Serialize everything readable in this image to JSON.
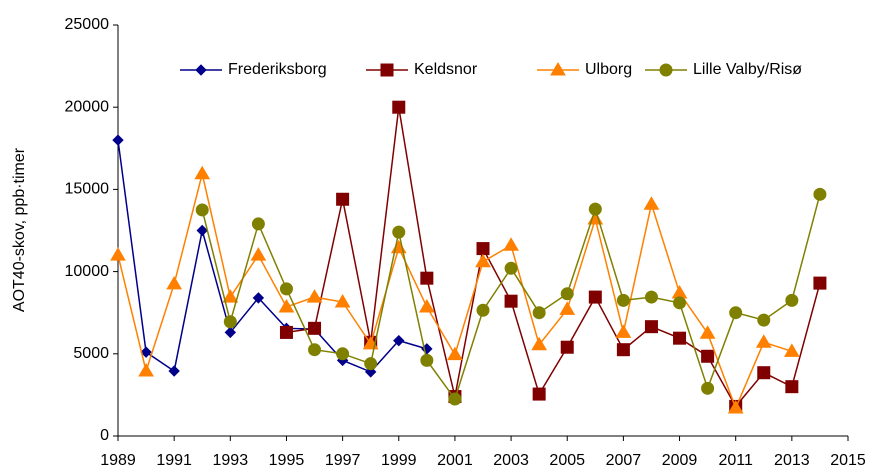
{
  "chart_data": {
    "type": "line",
    "y_label": "AOT40-skov, ppb·timer",
    "x": [
      1989,
      1990,
      1991,
      1992,
      1993,
      1994,
      1995,
      1996,
      1997,
      1998,
      1999,
      2000,
      2001,
      2002,
      2003,
      2004,
      2005,
      2006,
      2007,
      2008,
      2009,
      2010,
      2011,
      2012,
      2013,
      2014
    ],
    "series": [
      {
        "name": "Frederiksborg",
        "color": "#00008b",
        "marker": "diamond",
        "values": [
          18000,
          5100,
          3950,
          12500,
          6300,
          8400,
          6550,
          6500,
          4600,
          3900,
          5800,
          5300,
          null,
          null,
          null,
          null,
          null,
          null,
          null,
          null,
          null,
          null,
          null,
          null,
          null,
          null
        ]
      },
      {
        "name": "Keldsnor",
        "color": "#800000",
        "marker": "square",
        "values": [
          null,
          null,
          null,
          null,
          null,
          null,
          6300,
          6550,
          14400,
          5700,
          20000,
          9600,
          2400,
          11400,
          8200,
          2550,
          5400,
          8450,
          5250,
          6650,
          5950,
          4850,
          1800,
          3850,
          3000,
          9300
        ]
      },
      {
        "name": "Ulborg",
        "color": "#ff8000",
        "marker": "triangle",
        "values": [
          11000,
          3950,
          9250,
          15950,
          8450,
          11000,
          7850,
          8450,
          8150,
          5600,
          11450,
          7850,
          4950,
          10600,
          11600,
          5550,
          7700,
          13200,
          6300,
          14100,
          8700,
          6250,
          1700,
          5700,
          5150,
          null
        ]
      },
      {
        "name": "Lille Valby/Risø",
        "color": "#808000",
        "marker": "circle",
        "values": [
          null,
          null,
          null,
          13750,
          6950,
          12900,
          8950,
          5250,
          5000,
          4400,
          12400,
          4600,
          2250,
          7650,
          10200,
          7500,
          8650,
          13800,
          8250,
          8450,
          8100,
          2900,
          7500,
          7050,
          8250,
          14700
        ]
      }
    ],
    "xlim": [
      1989,
      2015
    ],
    "xticks": [
      1989,
      1991,
      1993,
      1995,
      1997,
      1999,
      2001,
      2003,
      2005,
      2007,
      2009,
      2011,
      2013,
      2015
    ],
    "ylim": [
      0,
      25000
    ],
    "yticks": [
      0,
      5000,
      10000,
      15000,
      20000,
      25000
    ],
    "legend": "top"
  }
}
